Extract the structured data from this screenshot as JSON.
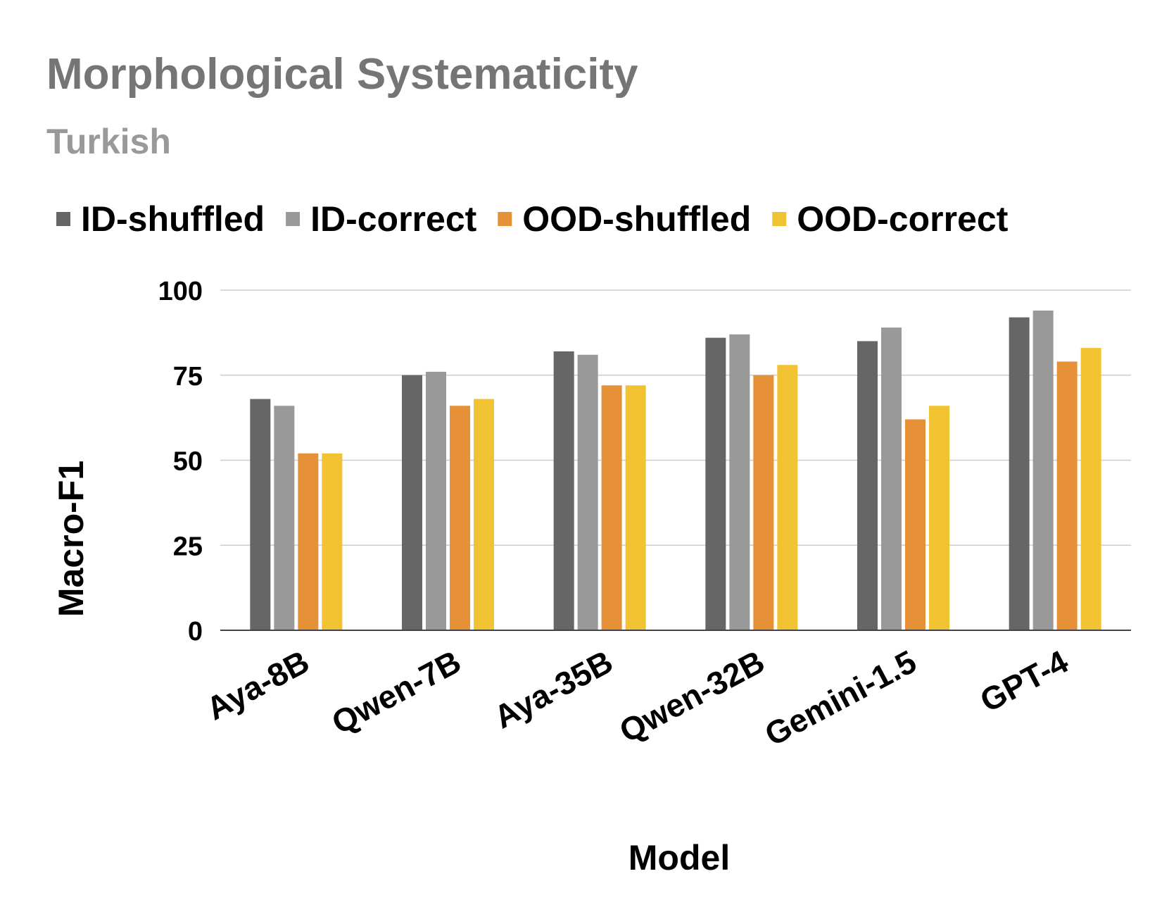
{
  "chart_data": {
    "type": "bar",
    "title": "Morphological Systematicity",
    "subtitle": "Turkish",
    "xlabel": "Model",
    "ylabel": "Macro-F1",
    "ylim": [
      0,
      100
    ],
    "yticks": [
      0,
      25,
      50,
      75,
      100
    ],
    "grid": true,
    "legend_position": "top",
    "categories": [
      "Aya-8B",
      "Qwen-7B",
      "Aya-35B",
      "Qwen-32B",
      "Gemini-1.5",
      "GPT-4"
    ],
    "series": [
      {
        "name": "ID-shuffled",
        "color": "#666666",
        "values": [
          68,
          75,
          82,
          86,
          85,
          92
        ]
      },
      {
        "name": "ID-correct",
        "color": "#999999",
        "values": [
          66,
          76,
          81,
          87,
          89,
          94
        ]
      },
      {
        "name": "OOD-shuffled",
        "color": "#e69138",
        "values": [
          52,
          66,
          72,
          75,
          62,
          79
        ]
      },
      {
        "name": "OOD-correct",
        "color": "#f1c232",
        "values": [
          52,
          68,
          72,
          78,
          66,
          83
        ]
      }
    ]
  }
}
